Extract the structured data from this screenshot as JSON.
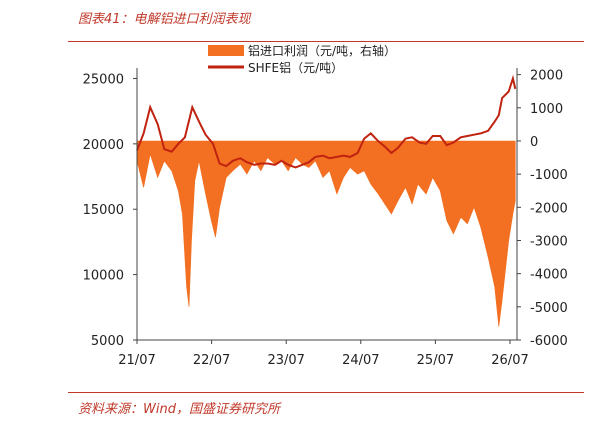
{
  "page": {
    "title": "图表41：电解铝进口利润表现",
    "source": "资料来源：Wind，国盛证券研究所"
  },
  "colors": {
    "accent": "#c0392b",
    "area": "#f36f21",
    "line": "#c0230f"
  },
  "chart_data": {
    "type": "area",
    "x_ticks": [
      "21/07",
      "22/07",
      "23/07",
      "24/07",
      "25/07",
      "26/07"
    ],
    "y_left": {
      "ticks": [
        "25000",
        "20000",
        "15000",
        "10000",
        "5000"
      ],
      "range": [
        5000,
        25800
      ]
    },
    "y_right": {
      "ticks": [
        "2000",
        "1000",
        "0",
        "-1000",
        "-2000",
        "-3000",
        "-4000",
        "-5000",
        "-6000"
      ],
      "range": [
        -6000,
        2200
      ]
    },
    "series": [
      {
        "name": "铝进口利润（元/吨，右轴）",
        "axis": "right",
        "kind": "area",
        "points": [
          [
            2021.5,
            -600
          ],
          [
            2021.58,
            -1400
          ],
          [
            2021.66,
            -400
          ],
          [
            2021.75,
            -1100
          ],
          [
            2021.83,
            -600
          ],
          [
            2021.92,
            -900
          ],
          [
            2022.0,
            -1500
          ],
          [
            2022.05,
            -2200
          ],
          [
            2022.1,
            -4400
          ],
          [
            2022.13,
            -5000
          ],
          [
            2022.16,
            -3000
          ],
          [
            2022.2,
            -1200
          ],
          [
            2022.25,
            -600
          ],
          [
            2022.33,
            -1600
          ],
          [
            2022.4,
            -2400
          ],
          [
            2022.45,
            -2900
          ],
          [
            2022.5,
            -2000
          ],
          [
            2022.58,
            -1100
          ],
          [
            2022.66,
            -900
          ],
          [
            2022.75,
            -700
          ],
          [
            2022.83,
            -1000
          ],
          [
            2022.92,
            -600
          ],
          [
            2023.0,
            -900
          ],
          [
            2023.08,
            -500
          ],
          [
            2023.17,
            -700
          ],
          [
            2023.25,
            -600
          ],
          [
            2023.33,
            -900
          ],
          [
            2023.42,
            -500
          ],
          [
            2023.5,
            -700
          ],
          [
            2023.58,
            -800
          ],
          [
            2023.66,
            -600
          ],
          [
            2023.75,
            -1100
          ],
          [
            2023.83,
            -900
          ],
          [
            2023.92,
            -1600
          ],
          [
            2024.0,
            -1100
          ],
          [
            2024.08,
            -800
          ],
          [
            2024.17,
            -1000
          ],
          [
            2024.25,
            -900
          ],
          [
            2024.33,
            -1300
          ],
          [
            2024.42,
            -1600
          ],
          [
            2024.5,
            -1900
          ],
          [
            2024.58,
            -2200
          ],
          [
            2024.66,
            -1800
          ],
          [
            2024.75,
            -1400
          ],
          [
            2024.83,
            -1900
          ],
          [
            2024.9,
            -1300
          ],
          [
            2025.0,
            -1600
          ],
          [
            2025.08,
            -1100
          ],
          [
            2025.17,
            -1500
          ],
          [
            2025.25,
            -2400
          ],
          [
            2025.33,
            -2800
          ],
          [
            2025.42,
            -2300
          ],
          [
            2025.5,
            -2500
          ],
          [
            2025.58,
            -2000
          ],
          [
            2025.66,
            -2600
          ],
          [
            2025.75,
            -3500
          ],
          [
            2025.83,
            -4400
          ],
          [
            2025.88,
            -5600
          ],
          [
            2025.92,
            -4800
          ],
          [
            2026.0,
            -3000
          ],
          [
            2026.05,
            -2200
          ],
          [
            2026.08,
            -1800
          ]
        ]
      },
      {
        "name": "SHFE铝（元/吨）",
        "axis": "left",
        "kind": "line",
        "points": [
          [
            2021.5,
            19500
          ],
          [
            2021.58,
            20800
          ],
          [
            2021.66,
            22800
          ],
          [
            2021.75,
            21500
          ],
          [
            2021.83,
            19600
          ],
          [
            2021.92,
            19400
          ],
          [
            2022.0,
            20000
          ],
          [
            2022.08,
            20500
          ],
          [
            2022.17,
            22800
          ],
          [
            2022.25,
            21700
          ],
          [
            2022.33,
            20700
          ],
          [
            2022.42,
            20000
          ],
          [
            2022.5,
            18500
          ],
          [
            2022.58,
            18300
          ],
          [
            2022.66,
            18700
          ],
          [
            2022.75,
            18900
          ],
          [
            2022.83,
            18600
          ],
          [
            2022.92,
            18400
          ],
          [
            2023.0,
            18500
          ],
          [
            2023.08,
            18500
          ],
          [
            2023.17,
            18400
          ],
          [
            2023.25,
            18700
          ],
          [
            2023.33,
            18400
          ],
          [
            2023.42,
            18200
          ],
          [
            2023.5,
            18400
          ],
          [
            2023.58,
            18600
          ],
          [
            2023.66,
            19000
          ],
          [
            2023.75,
            19100
          ],
          [
            2023.83,
            18900
          ],
          [
            2023.92,
            19000
          ],
          [
            2024.0,
            19100
          ],
          [
            2024.08,
            19000
          ],
          [
            2024.17,
            19300
          ],
          [
            2024.25,
            20400
          ],
          [
            2024.33,
            20800
          ],
          [
            2024.42,
            20200
          ],
          [
            2024.5,
            19800
          ],
          [
            2024.58,
            19300
          ],
          [
            2024.66,
            19700
          ],
          [
            2024.75,
            20400
          ],
          [
            2024.83,
            20500
          ],
          [
            2024.92,
            20100
          ],
          [
            2025.0,
            20000
          ],
          [
            2025.08,
            20600
          ],
          [
            2025.17,
            20600
          ],
          [
            2025.25,
            19900
          ],
          [
            2025.33,
            20100
          ],
          [
            2025.42,
            20500
          ],
          [
            2025.5,
            20600
          ],
          [
            2025.58,
            20700
          ],
          [
            2025.66,
            20800
          ],
          [
            2025.75,
            21000
          ],
          [
            2025.83,
            21700
          ],
          [
            2025.88,
            22200
          ],
          [
            2025.92,
            23500
          ],
          [
            2026.0,
            24000
          ],
          [
            2026.05,
            25000
          ],
          [
            2026.08,
            24200
          ]
        ]
      }
    ]
  }
}
